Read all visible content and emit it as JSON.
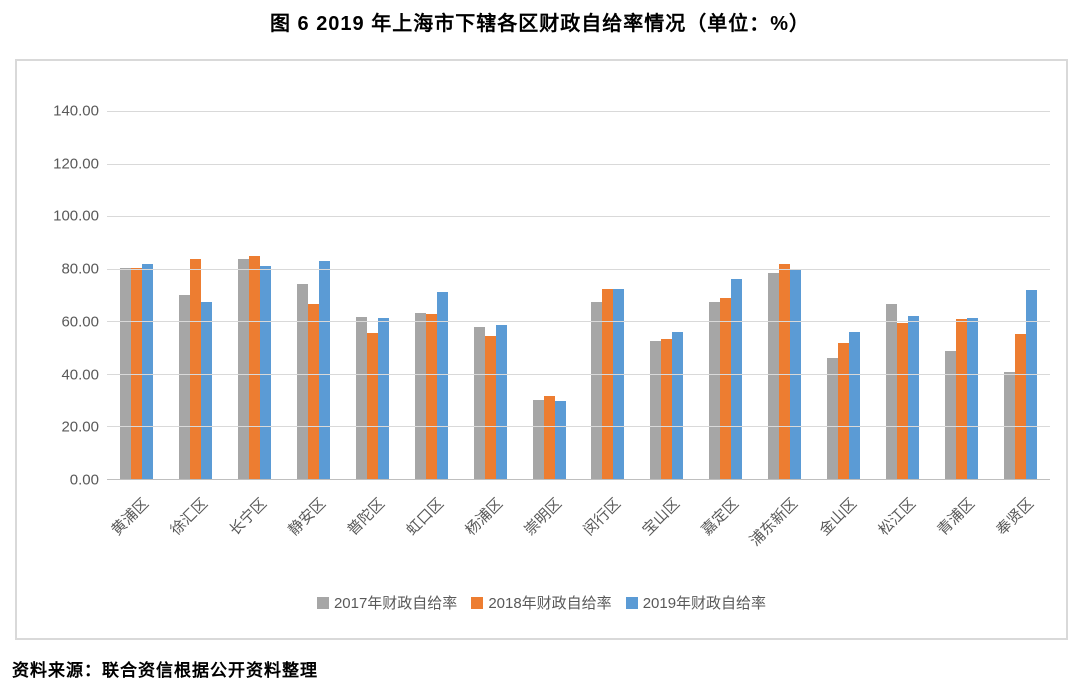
{
  "title": "图 6  2019 年上海市下辖各区财政自给率情况（单位：%）",
  "source": "资料来源：联合资信根据公开资料整理",
  "colors": {
    "series_2017": "#a6a6a6",
    "series_2018": "#ed7d31",
    "series_2019": "#5b9bd5",
    "gridline": "#d9d9d9",
    "axis_line": "#bfbfbf",
    "axis_label": "#595959",
    "frame_border": "#d9d9d9"
  },
  "chart_data": {
    "type": "bar",
    "title": "图 6  2019 年上海市下辖各区财政自给率情况（单位：%）",
    "xlabel": "",
    "ylabel": "",
    "unit": "%",
    "ylim": [
      0,
      140
    ],
    "ytick_step": 20,
    "ytick_labels": [
      "0.00",
      "20.00",
      "40.00",
      "60.00",
      "80.00",
      "100.00",
      "120.00",
      "140.00"
    ],
    "grid": true,
    "legend_position": "bottom",
    "categories": [
      "黄浦区",
      "徐汇区",
      "长宁区",
      "静安区",
      "普陀区",
      "虹口区",
      "杨浦区",
      "崇明区",
      "闵行区",
      "宝山区",
      "嘉定区",
      "浦东新区",
      "金山区",
      "松江区",
      "青浦区",
      "奉贤区"
    ],
    "series": [
      {
        "name": "2017年财政自给率",
        "color": "#a6a6a6",
        "values": [
          80.4,
          70.1,
          83.7,
          74.3,
          61.7,
          63.3,
          57.7,
          29.9,
          67.3,
          52.5,
          67.5,
          78.4,
          45.9,
          66.5,
          48.7,
          40.8
        ]
      },
      {
        "name": "2018年财政自给率",
        "color": "#ed7d31",
        "values": [
          80.1,
          83.6,
          84.7,
          66.5,
          55.7,
          62.8,
          54.4,
          31.5,
          72.4,
          53.3,
          68.8,
          81.8,
          51.6,
          59.5,
          60.8,
          55.2
        ]
      },
      {
        "name": "2019年财政自给率",
        "color": "#5b9bd5",
        "values": [
          81.7,
          67.4,
          80.9,
          83.1,
          61.2,
          71.0,
          58.6,
          29.7,
          72.4,
          55.8,
          76.1,
          79.7,
          56.1,
          62.1,
          61.2,
          72.0
        ]
      }
    ]
  }
}
